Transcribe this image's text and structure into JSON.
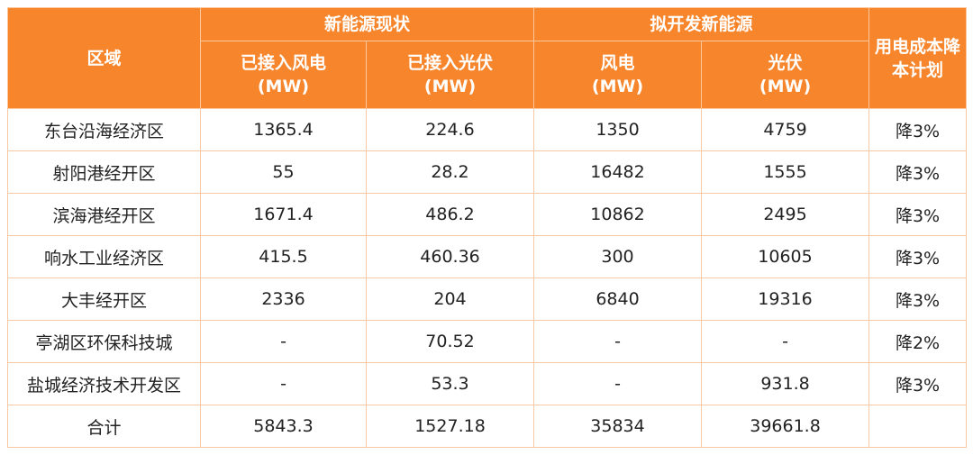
{
  "table": {
    "corner": "区域",
    "groups": [
      "新能源现状",
      "拟开发新能源"
    ],
    "columns": [
      {
        "name": "已接入风电",
        "unit": "(MW)"
      },
      {
        "name": "已接入光伏",
        "unit": "(MW)"
      },
      {
        "name": "风电",
        "unit": "(MW)"
      },
      {
        "name": "光伏",
        "unit": "(MW)"
      }
    ],
    "last": "用电成本降本计划",
    "rows": [
      [
        "东台沿海经济区",
        "1365.4",
        "224.6",
        "1350",
        "4759",
        "降3%"
      ],
      [
        "射阳港经开区",
        "55",
        "28.2",
        "16482",
        "1555",
        "降3%"
      ],
      [
        "滨海港经开区",
        "1671.4",
        "486.2",
        "10862",
        "2495",
        "降3%"
      ],
      [
        "响水工业经济区",
        "415.5",
        "460.36",
        "300",
        "10605",
        "降3%"
      ],
      [
        "大丰经开区",
        "2336",
        "204",
        "6840",
        "19316",
        "降3%"
      ],
      [
        "亭湖区环保科技城",
        "-",
        "70.52",
        "-",
        "-",
        "降2%"
      ],
      [
        "盐城经济技术开发区",
        "-",
        "53.3",
        "-",
        "931.8",
        "降3%"
      ],
      [
        "合计",
        "5843.3",
        "1527.18",
        "35834",
        "39661.8",
        ""
      ]
    ]
  }
}
